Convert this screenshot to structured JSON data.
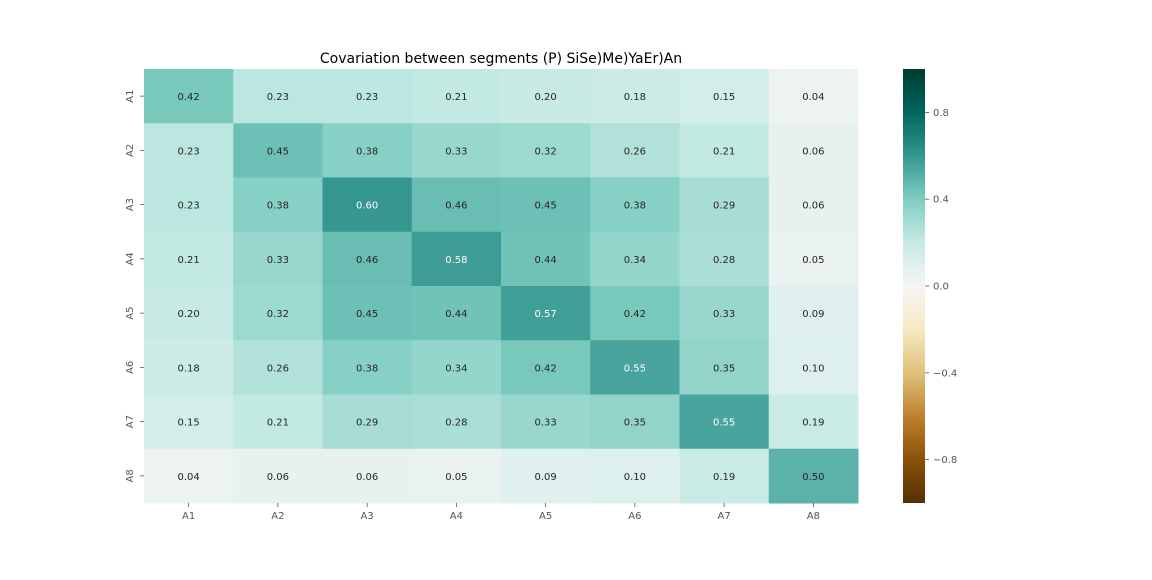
{
  "chart_data": {
    "type": "heatmap",
    "title": "Covariation between segments  (P) SiSe)Me)YaEr)An",
    "xlabel": "",
    "ylabel": "",
    "x_categories": [
      "A1",
      "A2",
      "A3",
      "A4",
      "A5",
      "A6",
      "A7",
      "A8"
    ],
    "y_categories": [
      "A1",
      "A2",
      "A3",
      "A4",
      "A5",
      "A6",
      "A7",
      "A8"
    ],
    "values": [
      [
        0.42,
        0.23,
        0.23,
        0.21,
        0.2,
        0.18,
        0.15,
        0.04
      ],
      [
        0.23,
        0.45,
        0.38,
        0.33,
        0.32,
        0.26,
        0.21,
        0.06
      ],
      [
        0.23,
        0.38,
        0.6,
        0.46,
        0.45,
        0.38,
        0.29,
        0.06
      ],
      [
        0.21,
        0.33,
        0.46,
        0.58,
        0.44,
        0.34,
        0.28,
        0.05
      ],
      [
        0.2,
        0.32,
        0.45,
        0.44,
        0.57,
        0.42,
        0.33,
        0.09
      ],
      [
        0.18,
        0.26,
        0.38,
        0.34,
        0.42,
        0.55,
        0.35,
        0.1
      ],
      [
        0.15,
        0.21,
        0.29,
        0.28,
        0.33,
        0.35,
        0.55,
        0.19
      ],
      [
        0.04,
        0.06,
        0.06,
        0.05,
        0.09,
        0.1,
        0.19,
        0.5
      ]
    ],
    "value_format": "2 decimals",
    "colorscale": {
      "name": "BrBG",
      "range": [
        -1.0,
        1.0
      ],
      "ticks": [
        0.8,
        0.4,
        0.0,
        -0.4,
        -0.8
      ],
      "tick_labels": [
        "0.8",
        "0.4",
        "0.0",
        "−0.4",
        "−0.8"
      ]
    },
    "colorbar_position": "right",
    "grid": false
  }
}
